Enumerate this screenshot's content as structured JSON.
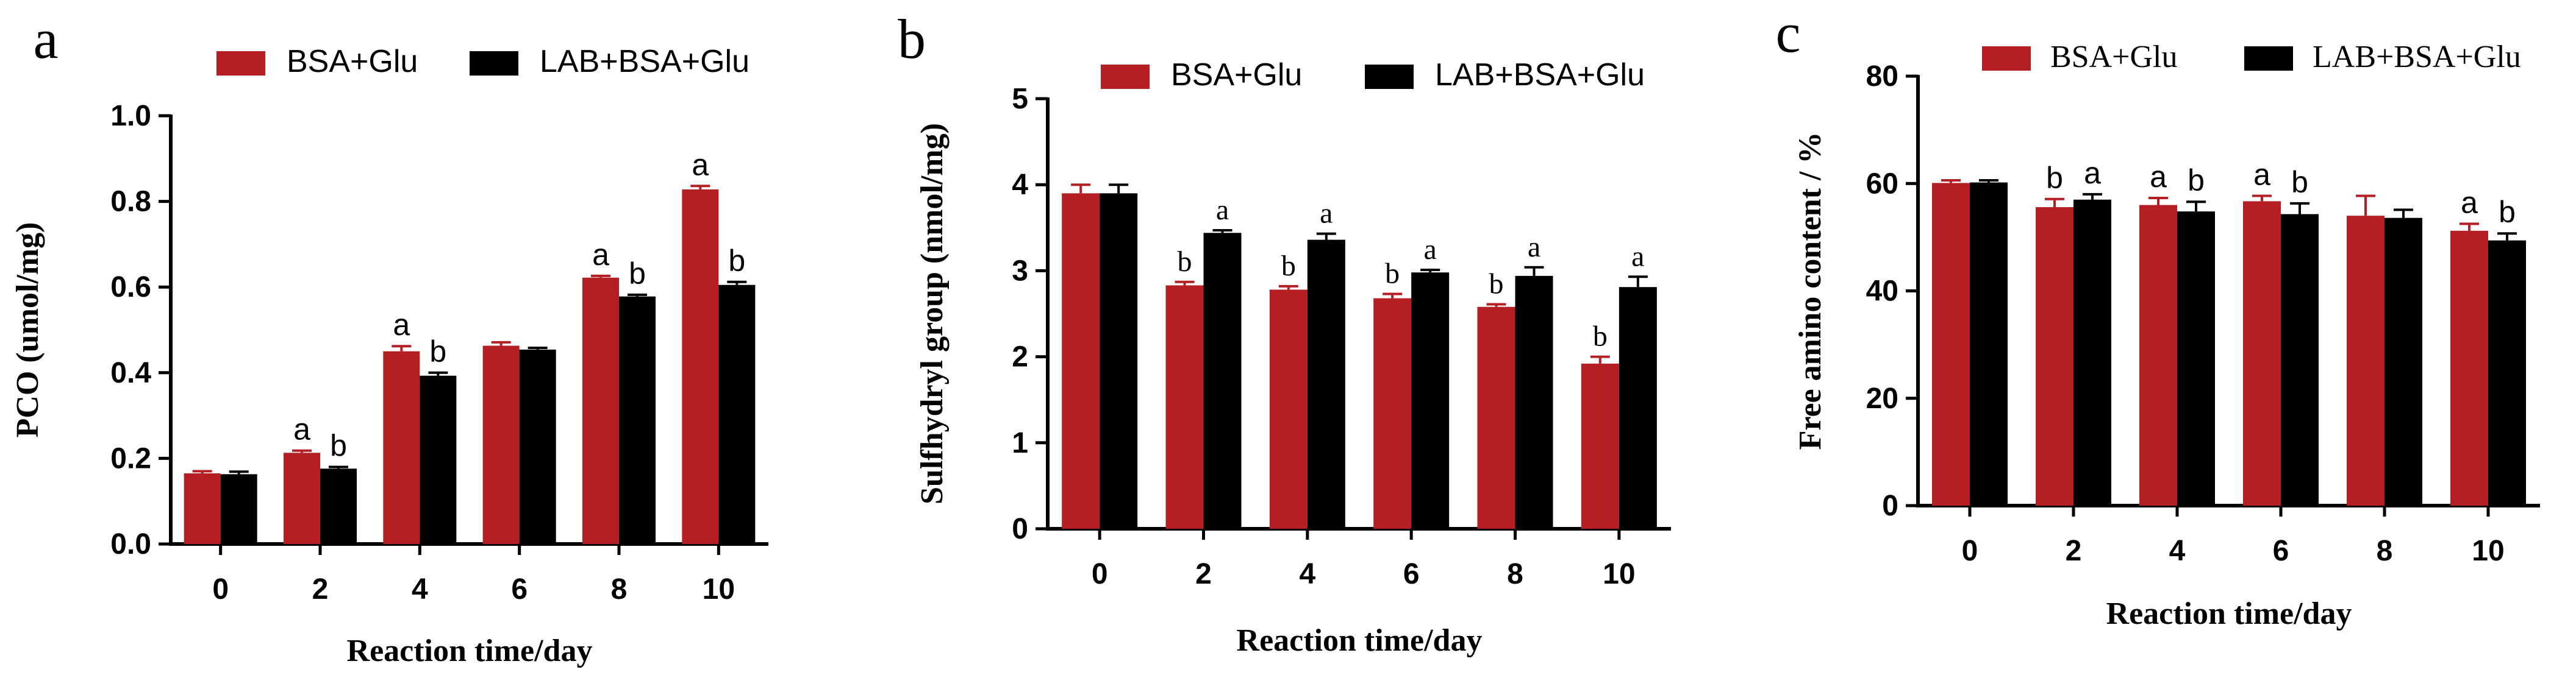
{
  "colors": {
    "series1": "#b51f24",
    "series2": "#000000",
    "axis": "#000000"
  },
  "chart_data": [
    {
      "panel": "a",
      "type": "bar",
      "title": "",
      "xlabel": "Reaction time/day",
      "ylabel": "PCO (umol/mg)",
      "ylim": [
        0,
        1.0
      ],
      "yticks": [
        "0.0",
        "0.2",
        "0.4",
        "0.6",
        "0.8",
        "1.0"
      ],
      "categories": [
        "0",
        "2",
        "4",
        "6",
        "8",
        "10"
      ],
      "series": [
        {
          "name": "BSA+Glu",
          "values": [
            0.165,
            0.213,
            0.45,
            0.463,
            0.622,
            0.828
          ],
          "errors": [
            0.005,
            0.005,
            0.012,
            0.008,
            0.004,
            0.008
          ],
          "labels": [
            "",
            "a",
            "a",
            "",
            "a",
            "a"
          ]
        },
        {
          "name": "LAB+BSA+Glu",
          "values": [
            0.163,
            0.176,
            0.393,
            0.454,
            0.578,
            0.605
          ],
          "errors": [
            0.006,
            0.004,
            0.007,
            0.004,
            0.004,
            0.007
          ],
          "labels": [
            "",
            "b",
            "b",
            "",
            "b",
            "b"
          ]
        }
      ],
      "legend_position": "top",
      "font": "sans"
    },
    {
      "panel": "b",
      "type": "bar",
      "title": "",
      "xlabel": "Reaction time/day",
      "ylabel": "Sulfhydryl group (nmol/mg)",
      "ylim": [
        0,
        5
      ],
      "yticks": [
        "0",
        "1",
        "2",
        "3",
        "4",
        "5"
      ],
      "categories": [
        "0",
        "2",
        "4",
        "6",
        "8",
        "10"
      ],
      "series": [
        {
          "name": "BSA+Glu",
          "values": [
            3.9,
            2.83,
            2.78,
            2.68,
            2.58,
            1.92
          ],
          "errors": [
            0.1,
            0.04,
            0.04,
            0.05,
            0.03,
            0.08
          ],
          "labels": [
            "",
            "b",
            "b",
            "b",
            "b",
            "b"
          ]
        },
        {
          "name": "LAB+BSA+Glu",
          "values": [
            3.9,
            3.44,
            3.36,
            2.98,
            2.94,
            2.81
          ],
          "errors": [
            0.1,
            0.03,
            0.07,
            0.03,
            0.1,
            0.12
          ],
          "labels": [
            "",
            "a",
            "a",
            "a",
            "a",
            "a"
          ]
        }
      ],
      "legend_position": "top",
      "font": "sans"
    },
    {
      "panel": "c",
      "type": "bar",
      "title": "",
      "xlabel": "Reaction time/day",
      "ylabel": "Free amino content / %",
      "ylim": [
        0,
        80
      ],
      "yticks": [
        "0",
        "20",
        "40",
        "60",
        "80"
      ],
      "categories": [
        "0",
        "2",
        "4",
        "6",
        "8",
        "10"
      ],
      "series": [
        {
          "name": "BSA+Glu",
          "values": [
            60.1,
            55.6,
            56.0,
            56.7,
            54.0,
            51.2
          ],
          "errors": [
            0.5,
            1.5,
            1.3,
            1.0,
            3.7,
            1.3
          ],
          "labels": [
            "",
            "b",
            "a",
            "a",
            "",
            "a"
          ]
        },
        {
          "name": "LAB+BSA+Glu",
          "values": [
            60.2,
            57.0,
            54.8,
            54.3,
            53.6,
            49.4
          ],
          "errors": [
            0.4,
            1.0,
            1.8,
            2.0,
            1.5,
            1.3
          ],
          "labels": [
            "",
            "a",
            "b",
            "b",
            "",
            "b"
          ]
        }
      ],
      "legend_position": "top",
      "font": "serif-legend"
    }
  ]
}
